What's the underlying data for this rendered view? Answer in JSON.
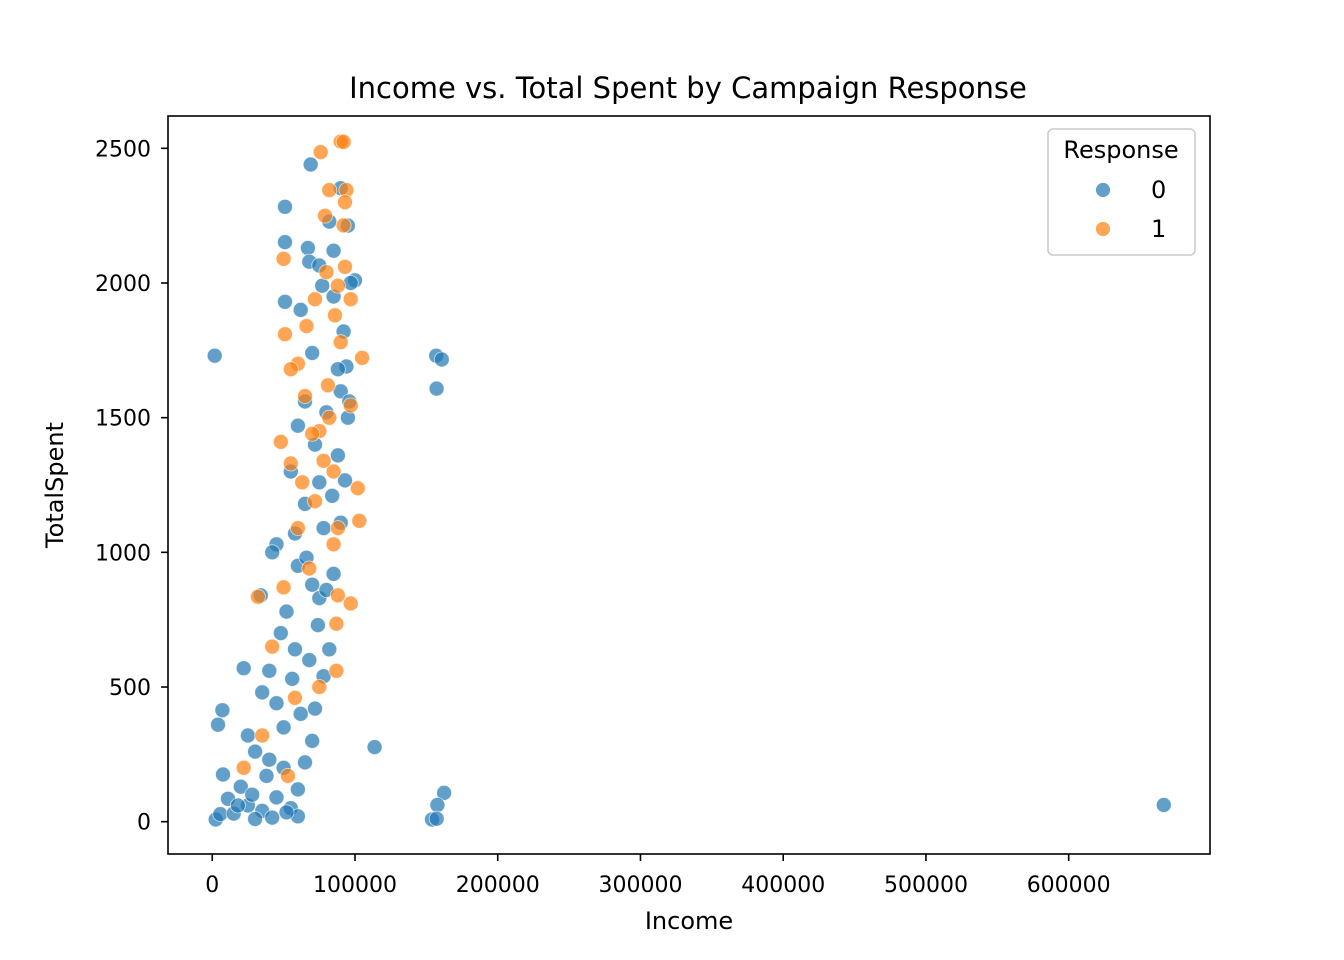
{
  "chart_data": {
    "type": "scatter",
    "title": "Income vs. Total Spent by Campaign Response",
    "xlabel": "Income",
    "ylabel": "TotalSpent",
    "xlim": [
      -31000,
      699000
    ],
    "ylim": [
      -120,
      2620
    ],
    "xticks": [
      0,
      100000,
      200000,
      300000,
      400000,
      500000,
      600000
    ],
    "xtick_labels": [
      "0",
      "100000",
      "200000",
      "300000",
      "400000",
      "500000",
      "600000"
    ],
    "yticks": [
      0,
      500,
      1000,
      1500,
      2000,
      2500
    ],
    "ytick_labels": [
      "0",
      "500",
      "1000",
      "1500",
      "2000",
      "2500"
    ],
    "grid": false,
    "legend": {
      "title": "Response",
      "placement": "top-right"
    },
    "series": [
      {
        "name": "0",
        "color": "#1f77b4",
        "points": [
          [
            1730,
            1730
          ],
          [
            156924,
            1730
          ],
          [
            160803,
            1716
          ],
          [
            157146,
            1608
          ],
          [
            113734,
            277
          ],
          [
            162397,
            107
          ],
          [
            157733,
            62
          ],
          [
            666666,
            62
          ],
          [
            153924,
            8
          ],
          [
            157243,
            11
          ],
          [
            2447,
            8
          ],
          [
            4023,
            360
          ],
          [
            7144,
            414
          ],
          [
            5648,
            28
          ],
          [
            7500,
            175
          ],
          [
            11000,
            85
          ],
          [
            22000,
            570
          ],
          [
            34000,
            840
          ],
          [
            69000,
            2440
          ],
          [
            51000,
            2283
          ],
          [
            51000,
            2152
          ],
          [
            82000,
            2228
          ],
          [
            90000,
            2352
          ],
          [
            95000,
            2213
          ],
          [
            67000,
            2130
          ],
          [
            68000,
            2079
          ],
          [
            75000,
            2065
          ],
          [
            100000,
            2010
          ],
          [
            51000,
            1930
          ],
          [
            62000,
            1900
          ],
          [
            85000,
            1950
          ],
          [
            94000,
            1690
          ],
          [
            90000,
            1598
          ],
          [
            95000,
            1500
          ],
          [
            80000,
            1520
          ],
          [
            60000,
            1470
          ],
          [
            72000,
            1400
          ],
          [
            88000,
            1360
          ],
          [
            93000,
            1267
          ],
          [
            55000,
            1300
          ],
          [
            65000,
            1180
          ],
          [
            78000,
            1090
          ],
          [
            45000,
            1030
          ],
          [
            42000,
            1000
          ],
          [
            60000,
            950
          ],
          [
            70000,
            880
          ],
          [
            75000,
            830
          ],
          [
            52000,
            780
          ],
          [
            48000,
            700
          ],
          [
            58000,
            640
          ],
          [
            68000,
            600
          ],
          [
            82000,
            640
          ],
          [
            40000,
            560
          ],
          [
            35000,
            480
          ],
          [
            45000,
            440
          ],
          [
            62000,
            400
          ],
          [
            72000,
            420
          ],
          [
            25000,
            320
          ],
          [
            30000,
            260
          ],
          [
            40000,
            230
          ],
          [
            50000,
            200
          ],
          [
            60000,
            120
          ],
          [
            20000,
            130
          ],
          [
            25000,
            60
          ],
          [
            35000,
            40
          ],
          [
            45000,
            90
          ],
          [
            55000,
            50
          ],
          [
            60000,
            20
          ],
          [
            15000,
            30
          ],
          [
            65000,
            220
          ],
          [
            70000,
            300
          ],
          [
            78000,
            540
          ],
          [
            85000,
            920
          ],
          [
            90000,
            1110
          ],
          [
            96000,
            1560
          ],
          [
            92000,
            1820
          ],
          [
            70000,
            1740
          ],
          [
            65000,
            1560
          ],
          [
            75000,
            1260
          ],
          [
            84000,
            1210
          ],
          [
            58000,
            1070
          ],
          [
            66000,
            980
          ],
          [
            74000,
            730
          ],
          [
            56000,
            530
          ],
          [
            50000,
            350
          ],
          [
            38000,
            170
          ],
          [
            28000,
            100
          ],
          [
            18000,
            60
          ],
          [
            30000,
            10
          ],
          [
            42000,
            15
          ],
          [
            52000,
            35
          ],
          [
            80000,
            860
          ],
          [
            88000,
            1680
          ],
          [
            77000,
            1990
          ],
          [
            85000,
            2120
          ],
          [
            97000,
            2000
          ]
        ]
      },
      {
        "name": "1",
        "color": "#ff7f0e",
        "points": [
          [
            76000,
            2486
          ],
          [
            90000,
            2525
          ],
          [
            92000,
            2524
          ],
          [
            82000,
            2345
          ],
          [
            94000,
            2345
          ],
          [
            93000,
            2300
          ],
          [
            92000,
            2214
          ],
          [
            79000,
            2250
          ],
          [
            50000,
            2090
          ],
          [
            80000,
            2040
          ],
          [
            93000,
            2060
          ],
          [
            88000,
            1990
          ],
          [
            86000,
            1880
          ],
          [
            97000,
            1940
          ],
          [
            72000,
            1940
          ],
          [
            51000,
            1810
          ],
          [
            60000,
            1700
          ],
          [
            90000,
            1780
          ],
          [
            105000,
            1722
          ],
          [
            55000,
            1680
          ],
          [
            65000,
            1580
          ],
          [
            97000,
            1545
          ],
          [
            75000,
            1450
          ],
          [
            48000,
            1410
          ],
          [
            55000,
            1330
          ],
          [
            85000,
            1300
          ],
          [
            102000,
            1238
          ],
          [
            103000,
            1117
          ],
          [
            88000,
            1090
          ],
          [
            60000,
            1090
          ],
          [
            85000,
            1030
          ],
          [
            50000,
            870
          ],
          [
            88000,
            840
          ],
          [
            97000,
            810
          ],
          [
            87000,
            735
          ],
          [
            32000,
            835
          ],
          [
            42000,
            650
          ],
          [
            75000,
            500
          ],
          [
            87000,
            560
          ],
          [
            35000,
            320
          ],
          [
            22000,
            200
          ],
          [
            53000,
            170
          ],
          [
            58000,
            460
          ],
          [
            68000,
            940
          ],
          [
            72000,
            1190
          ],
          [
            78000,
            1340
          ],
          [
            82000,
            1500
          ],
          [
            66000,
            1840
          ],
          [
            81000,
            1620
          ],
          [
            63000,
            1260
          ],
          [
            70000,
            1440
          ]
        ]
      }
    ]
  }
}
